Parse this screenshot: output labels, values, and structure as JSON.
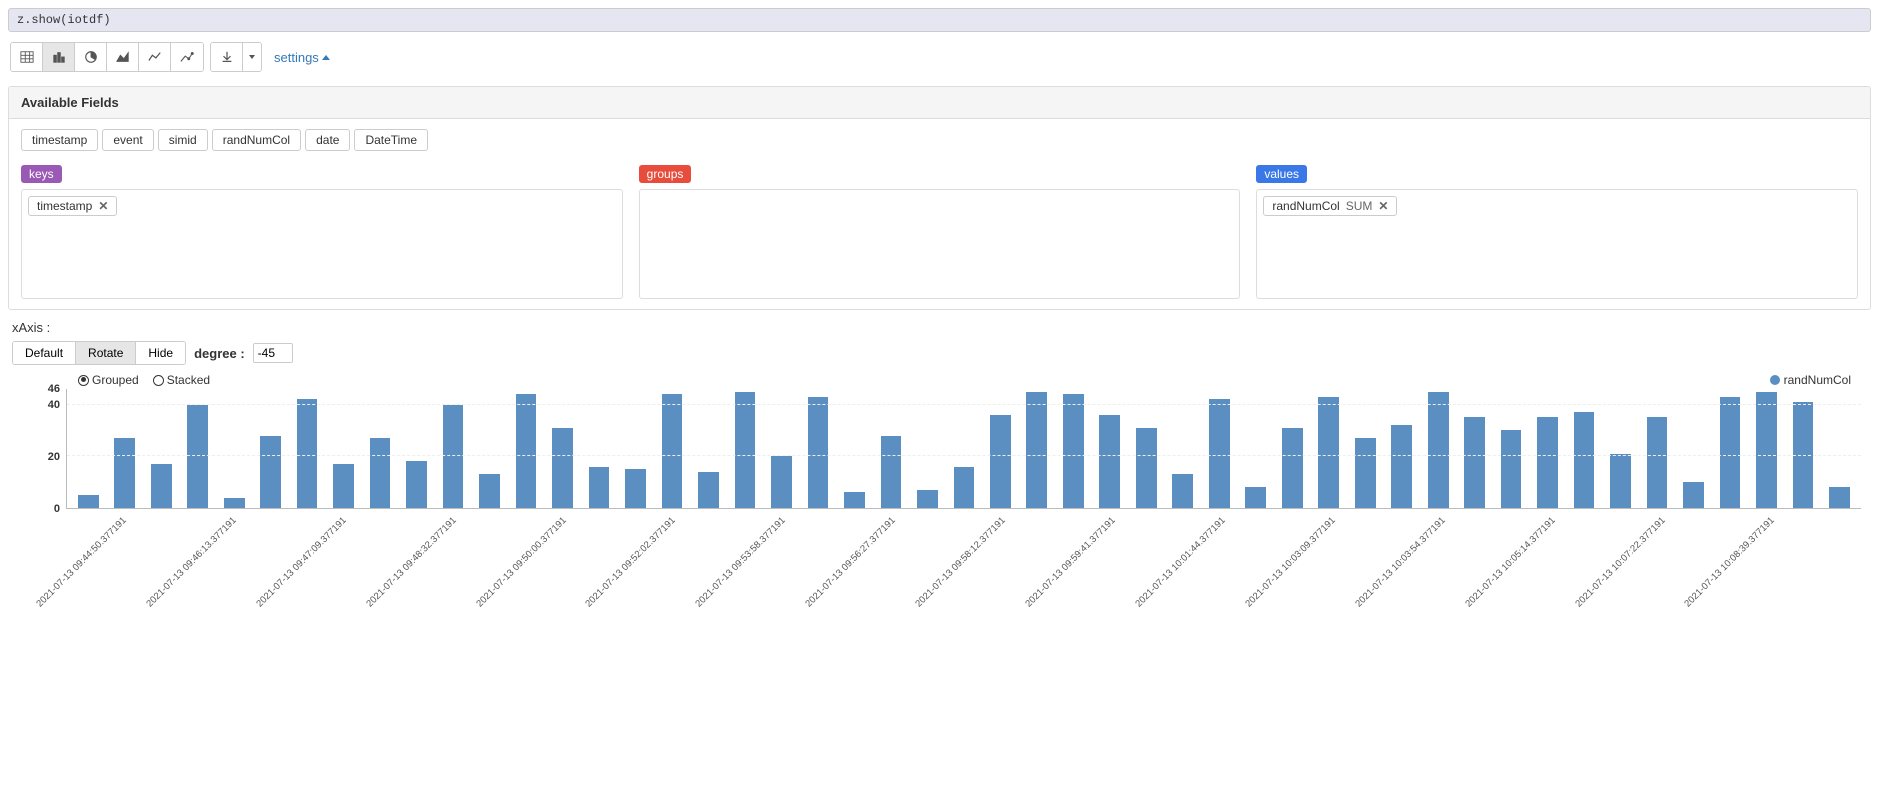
{
  "code_line": "z.show(iotdf)",
  "settings_label": "settings",
  "available_fields": {
    "title": "Available Fields",
    "items": [
      "timestamp",
      "event",
      "simid",
      "randNumCol",
      "date",
      "DateTime"
    ]
  },
  "kgv": {
    "keys_label": "keys",
    "groups_label": "groups",
    "values_label": "values",
    "keys_tags": [
      {
        "label": "timestamp"
      }
    ],
    "groups_tags": [],
    "values_tags": [
      {
        "label": "randNumCol",
        "agg": "SUM"
      }
    ]
  },
  "xaxis": {
    "label": "xAxis :",
    "options": [
      "Default",
      "Rotate",
      "Hide"
    ],
    "selected": "Rotate",
    "degree_label": "degree :",
    "degree_value": "-45"
  },
  "chart_modes": {
    "grouped": "Grouped",
    "stacked": "Stacked",
    "selected": "Grouped"
  },
  "legend": {
    "series_label": "randNumCol",
    "color": "#5b8fc1"
  },
  "chart": {
    "type": "bar",
    "bar_color": "#5b8fc1",
    "background_color": "#ffffff",
    "grid_color": "#eeeeee",
    "ylim": [
      0,
      46
    ],
    "yticks": [
      0,
      20,
      40,
      46
    ],
    "bar_width_pct": 60,
    "xlabel_rotate_deg": -45,
    "label_fontsize": 9.5,
    "values": [
      5,
      27,
      17,
      40,
      4,
      28,
      42,
      17,
      27,
      18,
      40,
      13,
      44,
      31,
      16,
      15,
      44,
      14,
      45,
      20,
      43,
      6,
      28,
      7,
      16,
      36,
      45,
      44,
      36,
      31,
      13,
      42,
      8,
      31,
      43,
      27,
      32,
      45,
      35,
      30,
      35,
      37,
      21,
      35,
      10,
      43,
      45,
      41,
      8
    ],
    "xlabels_visible": [
      {
        "idx": 1,
        "text": "2021-07-13 09:44:50.377191"
      },
      {
        "idx": 4,
        "text": "2021-07-13 09:46:13.377191"
      },
      {
        "idx": 7,
        "text": "2021-07-13 09:47:09.377191"
      },
      {
        "idx": 10,
        "text": "2021-07-13 09:48:32.377191"
      },
      {
        "idx": 13,
        "text": "2021-07-13 09:50:00.377191"
      },
      {
        "idx": 16,
        "text": "2021-07-13 09:52:02.377191"
      },
      {
        "idx": 19,
        "text": "2021-07-13 09:53:58.377191"
      },
      {
        "idx": 22,
        "text": "2021-07-13 09:56:27.377191"
      },
      {
        "idx": 25,
        "text": "2021-07-13 09:58:12.377191"
      },
      {
        "idx": 28,
        "text": "2021-07-13 09:59:41.377191"
      },
      {
        "idx": 31,
        "text": "2021-07-13 10:01:44.377191"
      },
      {
        "idx": 34,
        "text": "2021-07-13 10:03:09.377191"
      },
      {
        "idx": 37,
        "text": "2021-07-13 10:03:54.377191"
      },
      {
        "idx": 40,
        "text": "2021-07-13 10:05:14.377191"
      },
      {
        "idx": 43,
        "text": "2021-07-13 10:07:22.377191"
      },
      {
        "idx": 46,
        "text": "2021-07-13 10:08:39.377191"
      }
    ]
  }
}
